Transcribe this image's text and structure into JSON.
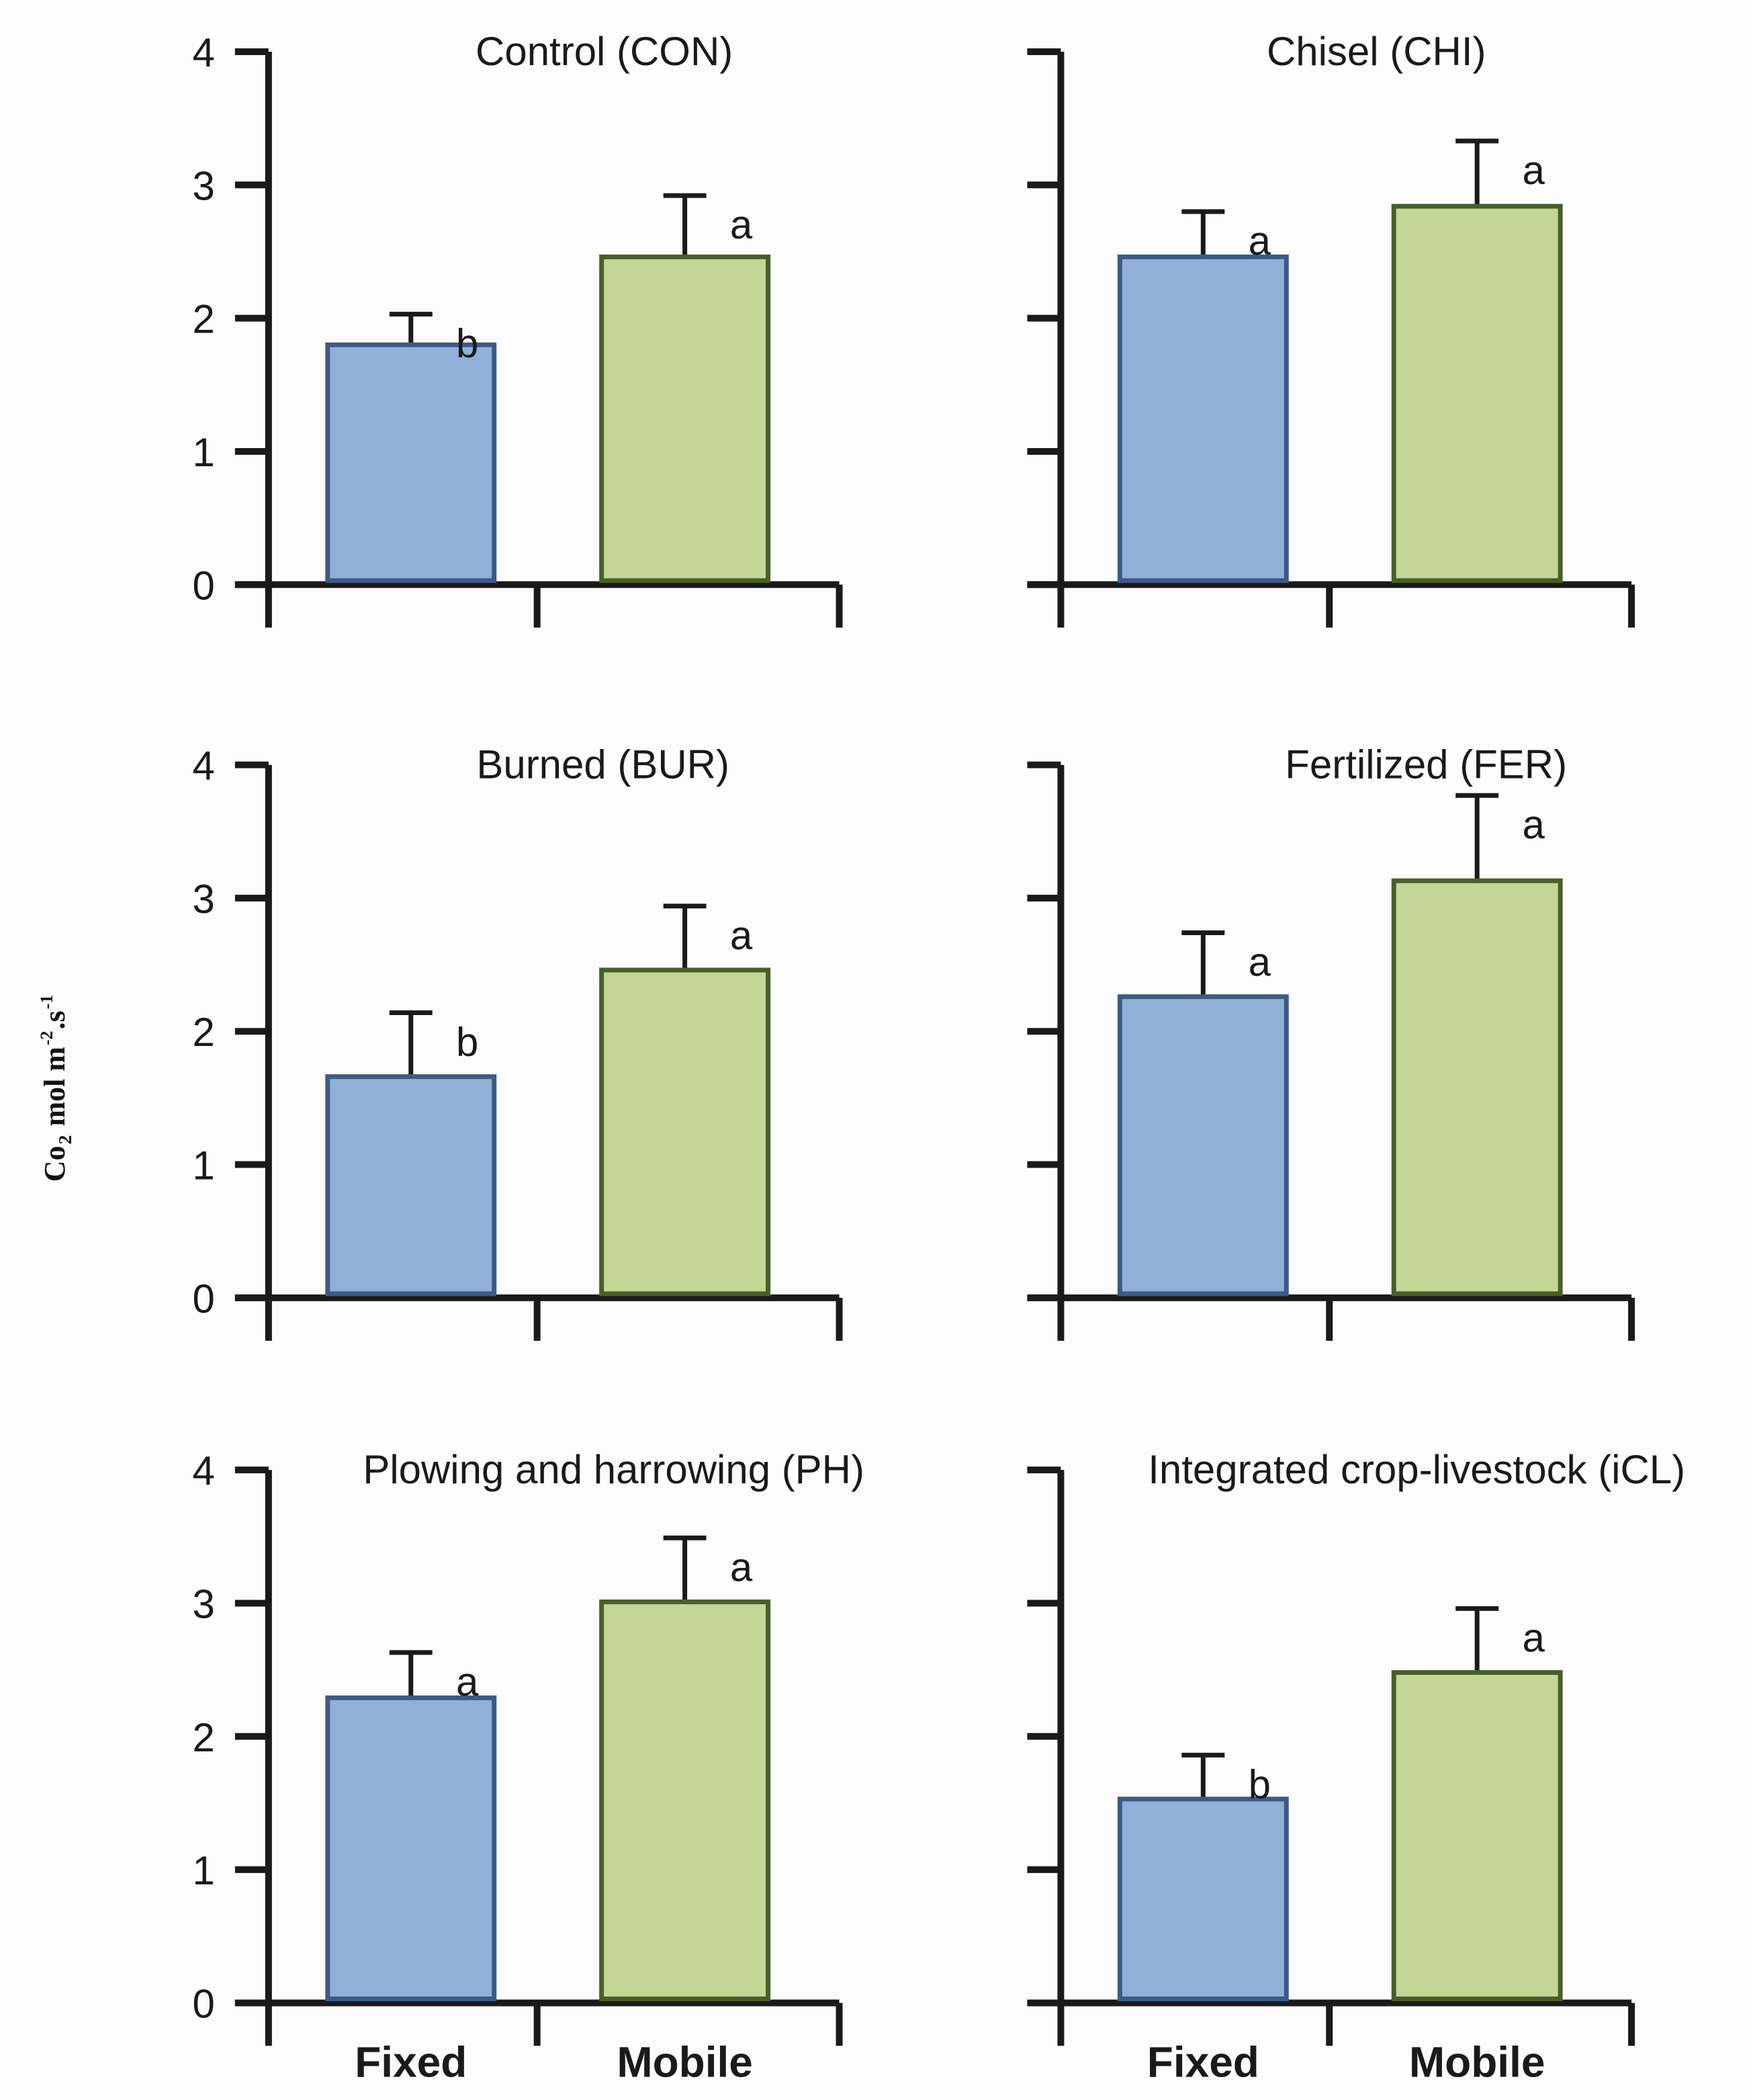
{
  "chart_data": {
    "type": "bar",
    "ylabel": {
      "main": "Co",
      "sub": "2",
      "unit1": " mol m",
      "sup1": "-2",
      "unit2": ".s",
      "sup2": "-1"
    },
    "categories": [
      "Fixed",
      "Mobile"
    ],
    "ylim": [
      0,
      4
    ],
    "yticks": [
      "0",
      "1",
      "2",
      "3",
      "4"
    ],
    "colors": {
      "Fixed": "#91b0d7",
      "Fixed_edge": "#3d5a87",
      "Mobile": "#c3d696",
      "Mobile_edge": "#4a5e2a",
      "axis": "#1a1a1a"
    },
    "panels": [
      {
        "title": "Control (CON)",
        "values": [
          1.8,
          2.46
        ],
        "errors": [
          0.23,
          0.46
        ],
        "letters": [
          "b",
          "a"
        ]
      },
      {
        "title": "Chisel (CHI)",
        "values": [
          2.46,
          2.84
        ],
        "errors": [
          0.34,
          0.49
        ],
        "letters": [
          "a",
          "a"
        ]
      },
      {
        "title": "Burned (BUR)",
        "values": [
          1.66,
          2.46
        ],
        "errors": [
          0.48,
          0.48
        ],
        "letters": [
          "b",
          "a"
        ]
      },
      {
        "title": "Fertilized (FER)",
        "values": [
          2.26,
          3.13
        ],
        "errors": [
          0.48,
          0.64
        ],
        "letters": [
          "a",
          "a"
        ]
      },
      {
        "title": "Plowing and harrowing (PH)",
        "values": [
          2.29,
          3.01
        ],
        "errors": [
          0.34,
          0.48
        ],
        "letters": [
          "a",
          "a"
        ]
      },
      {
        "title": "Integrated crop-livestock (iCL)",
        "values": [
          1.53,
          2.48
        ],
        "errors": [
          0.33,
          0.48
        ],
        "letters": [
          "b",
          "a"
        ]
      }
    ]
  }
}
